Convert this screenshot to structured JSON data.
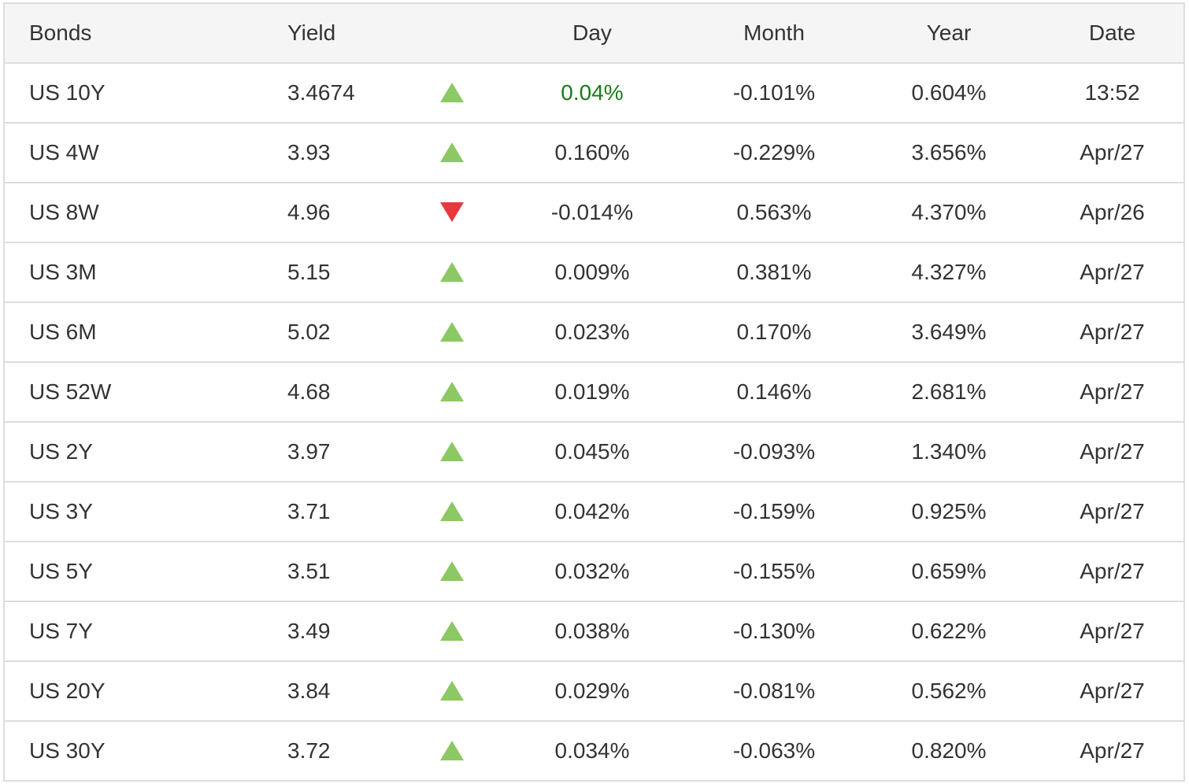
{
  "headers": {
    "bonds": "Bonds",
    "yield": "Yield",
    "day": "Day",
    "month": "Month",
    "year": "Year",
    "date": "Date"
  },
  "colors": {
    "up": "#8cc864",
    "down": "#e8383d",
    "highlight_green": "#1a7a1a"
  },
  "rows": [
    {
      "bond": "US 10Y",
      "yield": "3.4674",
      "direction": "up",
      "day": "0.04%",
      "month": "-0.101%",
      "year": "0.604%",
      "date": "13:52",
      "day_highlight": true
    },
    {
      "bond": "US 4W",
      "yield": "3.93",
      "direction": "up",
      "day": "0.160%",
      "month": "-0.229%",
      "year": "3.656%",
      "date": "Apr/27"
    },
    {
      "bond": "US 8W",
      "yield": "4.96",
      "direction": "down",
      "day": "-0.014%",
      "month": "0.563%",
      "year": "4.370%",
      "date": "Apr/26"
    },
    {
      "bond": "US 3M",
      "yield": "5.15",
      "direction": "up",
      "day": "0.009%",
      "month": "0.381%",
      "year": "4.327%",
      "date": "Apr/27"
    },
    {
      "bond": "US 6M",
      "yield": "5.02",
      "direction": "up",
      "day": "0.023%",
      "month": "0.170%",
      "year": "3.649%",
      "date": "Apr/27"
    },
    {
      "bond": "US 52W",
      "yield": "4.68",
      "direction": "up",
      "day": "0.019%",
      "month": "0.146%",
      "year": "2.681%",
      "date": "Apr/27"
    },
    {
      "bond": "US 2Y",
      "yield": "3.97",
      "direction": "up",
      "day": "0.045%",
      "month": "-0.093%",
      "year": "1.340%",
      "date": "Apr/27"
    },
    {
      "bond": "US 3Y",
      "yield": "3.71",
      "direction": "up",
      "day": "0.042%",
      "month": "-0.159%",
      "year": "0.925%",
      "date": "Apr/27"
    },
    {
      "bond": "US 5Y",
      "yield": "3.51",
      "direction": "up",
      "day": "0.032%",
      "month": "-0.155%",
      "year": "0.659%",
      "date": "Apr/27"
    },
    {
      "bond": "US 7Y",
      "yield": "3.49",
      "direction": "up",
      "day": "0.038%",
      "month": "-0.130%",
      "year": "0.622%",
      "date": "Apr/27"
    },
    {
      "bond": "US 20Y",
      "yield": "3.84",
      "direction": "up",
      "day": "0.029%",
      "month": "-0.081%",
      "year": "0.562%",
      "date": "Apr/27"
    },
    {
      "bond": "US 30Y",
      "yield": "3.72",
      "direction": "up",
      "day": "0.034%",
      "month": "-0.063%",
      "year": "0.820%",
      "date": "Apr/27"
    }
  ]
}
